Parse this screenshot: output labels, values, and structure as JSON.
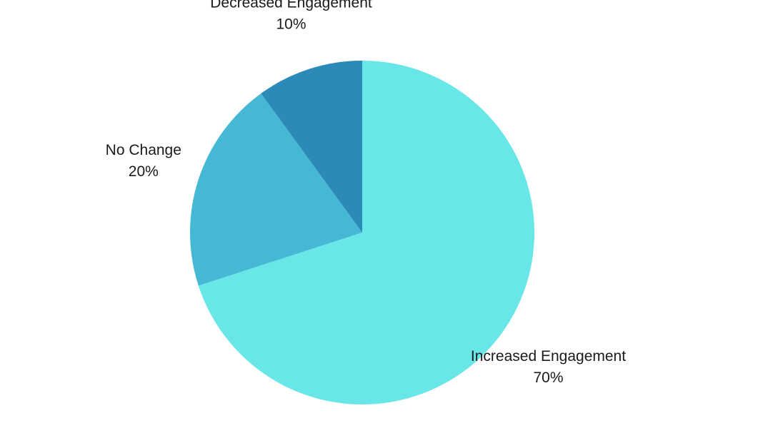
{
  "chart_data": {
    "type": "pie",
    "title": "",
    "start_angle_deg": 0,
    "direction": "clockwise",
    "slices": [
      {
        "label": "Increased Engagement",
        "value": 70,
        "display": "70%",
        "color": "#69E6E8"
      },
      {
        "label": "No Change",
        "value": 20,
        "display": "20%",
        "color": "#44B8D4"
      },
      {
        "label": "Decreased Engagement",
        "value": 10,
        "display": "10%",
        "color": "#2C8AB8"
      }
    ]
  }
}
